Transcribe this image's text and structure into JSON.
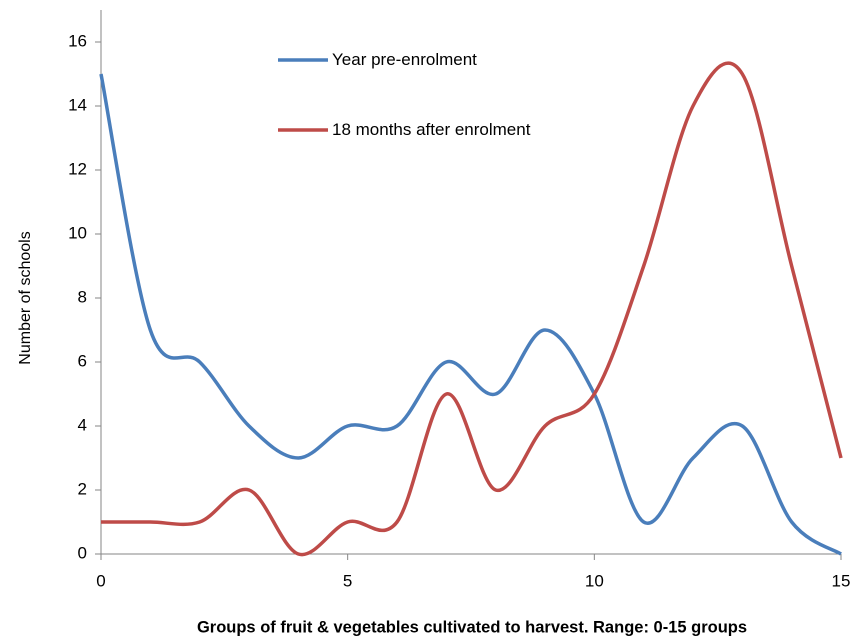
{
  "chart_data": {
    "type": "line",
    "x": [
      0,
      1,
      2,
      3,
      4,
      5,
      6,
      7,
      8,
      9,
      10,
      11,
      12,
      13,
      14,
      15
    ],
    "series": [
      {
        "name": "Year pre-enrolment",
        "color": "#4a7ebb",
        "values": [
          15,
          7,
          6,
          4,
          3,
          4,
          4,
          6,
          5,
          7,
          5,
          1,
          3,
          4,
          1,
          0
        ]
      },
      {
        "name": "18 months after enrolment",
        "color": "#be4b48",
        "values": [
          1,
          1,
          1,
          2,
          0,
          1,
          1,
          5,
          2,
          4,
          5,
          9,
          14,
          15,
          9,
          3
        ]
      }
    ],
    "xlabel": "Groups of fruit & vegetables cultivated to harvest. Range: 0-15 groups",
    "ylabel": "Number of schools",
    "xlim": [
      0,
      15
    ],
    "xticks": [
      0,
      5,
      10,
      15
    ],
    "ylim": [
      0,
      17
    ],
    "yticks": [
      0,
      2,
      4,
      6,
      8,
      10,
      12,
      14,
      16
    ],
    "grid": false,
    "smooth": true
  }
}
